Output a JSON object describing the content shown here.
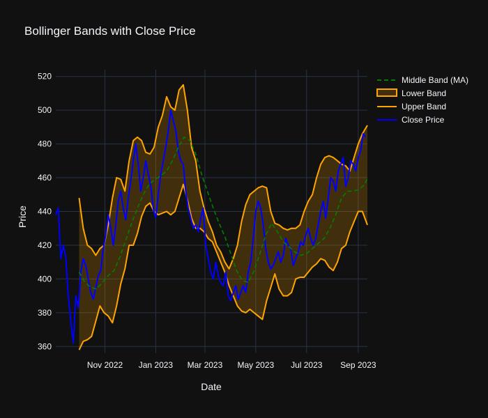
{
  "chart_data": {
    "type": "line",
    "title": "Bollinger Bands with Close Price",
    "xlabel": "Date",
    "ylabel": "Price",
    "xlim": [
      "2022-09-03",
      "2023-09-12"
    ],
    "ylim": [
      356,
      524
    ],
    "x_ticks": [
      "2022-11-01",
      "2023-01-01",
      "2023-03-01",
      "2023-05-01",
      "2023-07-01",
      "2023-09-01"
    ],
    "x_tick_labels": [
      "Nov 2022",
      "Jan 2023",
      "Mar 2023",
      "May 2023",
      "Jul 2023",
      "Sep 2023"
    ],
    "y_ticks": [
      360,
      380,
      400,
      420,
      440,
      460,
      480,
      500,
      520
    ],
    "grid": true,
    "legend_position": "right",
    "colors": {
      "background": "#111111",
      "grid": "#283442",
      "close": "#0000ff",
      "bands": "#ffa500",
      "fill": "rgba(255,165,0,0.2)",
      "middle": "#008000",
      "text": "#f2f5fa"
    },
    "series": [
      {
        "name": "Middle Band (MA)",
        "dash": true,
        "x": [
          "2022-10-01",
          "2022-10-08",
          "2022-10-15",
          "2022-10-22",
          "2022-10-29",
          "2022-11-05",
          "2022-11-12",
          "2022-11-19",
          "2022-11-26",
          "2022-12-03",
          "2022-12-10",
          "2022-12-17",
          "2022-12-24",
          "2022-12-31",
          "2023-01-07",
          "2023-01-14",
          "2023-01-21",
          "2023-01-28",
          "2023-02-04",
          "2023-02-11",
          "2023-02-18",
          "2023-02-25",
          "2023-03-04",
          "2023-03-11",
          "2023-03-18",
          "2023-03-25",
          "2023-04-01",
          "2023-04-08",
          "2023-04-15",
          "2023-04-22",
          "2023-04-29",
          "2023-05-06",
          "2023-05-13",
          "2023-05-20",
          "2023-05-27",
          "2023-06-03",
          "2023-06-10",
          "2023-06-17",
          "2023-06-24",
          "2023-07-01",
          "2023-07-08",
          "2023-07-15",
          "2023-07-22",
          "2023-07-29",
          "2023-08-05",
          "2023-08-12",
          "2023-08-19",
          "2023-08-26",
          "2023-09-02",
          "2023-09-09",
          "2023-09-12"
        ],
        "values": [
          404,
          398,
          395,
          394,
          398,
          402,
          405,
          413,
          423,
          433,
          442,
          450,
          456,
          459,
          461,
          464,
          470,
          478,
          484,
          482,
          474,
          462,
          452,
          442,
          433,
          425,
          415,
          405,
          399,
          398,
          405,
          415,
          426,
          433,
          428,
          422,
          419,
          416,
          414,
          415,
          418,
          421,
          424,
          430,
          438,
          448,
          452,
          452,
          453,
          456,
          460
        ]
      },
      {
        "name": "Lower Band",
        "x": [
          "2022-10-01",
          "2022-10-06",
          "2022-10-11",
          "2022-10-16",
          "2022-10-21",
          "2022-10-26",
          "2022-10-31",
          "2022-11-05",
          "2022-11-10",
          "2022-11-15",
          "2022-11-20",
          "2022-11-25",
          "2022-11-30",
          "2022-12-05",
          "2022-12-10",
          "2022-12-15",
          "2022-12-20",
          "2022-12-25",
          "2022-12-30",
          "2023-01-04",
          "2023-01-09",
          "2023-01-14",
          "2023-01-19",
          "2023-01-24",
          "2023-01-29",
          "2023-02-03",
          "2023-02-08",
          "2023-02-13",
          "2023-02-18",
          "2023-02-23",
          "2023-02-28",
          "2023-03-05",
          "2023-03-10",
          "2023-03-15",
          "2023-03-20",
          "2023-03-25",
          "2023-03-30",
          "2023-04-04",
          "2023-04-09",
          "2023-04-14",
          "2023-04-19",
          "2023-04-24",
          "2023-04-29",
          "2023-05-04",
          "2023-05-09",
          "2023-05-14",
          "2023-05-19",
          "2023-05-24",
          "2023-05-29",
          "2023-06-03",
          "2023-06-08",
          "2023-06-13",
          "2023-06-18",
          "2023-06-23",
          "2023-06-28",
          "2023-07-03",
          "2023-07-08",
          "2023-07-13",
          "2023-07-18",
          "2023-07-23",
          "2023-07-28",
          "2023-08-02",
          "2023-08-07",
          "2023-08-12",
          "2023-08-17",
          "2023-08-22",
          "2023-08-27",
          "2023-09-01",
          "2023-09-06",
          "2023-09-12"
        ],
        "values": [
          358,
          363,
          364,
          366,
          375,
          384,
          380,
          378,
          374,
          384,
          397,
          406,
          420,
          420,
          427,
          437,
          443,
          445,
          440,
          438,
          439,
          440,
          438,
          440,
          448,
          456,
          447,
          436,
          430,
          430,
          428,
          424,
          422,
          416,
          410,
          404,
          396,
          390,
          384,
          381,
          380,
          382,
          380,
          378,
          376,
          387,
          395,
          403,
          394,
          390,
          390,
          392,
          400,
          401,
          401,
          404,
          407,
          409,
          412,
          411,
          407,
          405,
          410,
          418,
          420,
          428,
          434,
          440,
          440,
          432
        ]
      },
      {
        "name": "Upper Band",
        "x": [
          "2022-10-01",
          "2022-10-06",
          "2022-10-11",
          "2022-10-16",
          "2022-10-21",
          "2022-10-26",
          "2022-10-31",
          "2022-11-05",
          "2022-11-10",
          "2022-11-15",
          "2022-11-20",
          "2022-11-25",
          "2022-11-30",
          "2022-12-05",
          "2022-12-10",
          "2022-12-15",
          "2022-12-20",
          "2022-12-25",
          "2022-12-30",
          "2023-01-04",
          "2023-01-09",
          "2023-01-14",
          "2023-01-19",
          "2023-01-24",
          "2023-01-29",
          "2023-02-03",
          "2023-02-08",
          "2023-02-13",
          "2023-02-18",
          "2023-02-23",
          "2023-02-28",
          "2023-03-05",
          "2023-03-10",
          "2023-03-15",
          "2023-03-20",
          "2023-03-25",
          "2023-03-30",
          "2023-04-04",
          "2023-04-09",
          "2023-04-14",
          "2023-04-19",
          "2023-04-24",
          "2023-04-29",
          "2023-05-04",
          "2023-05-09",
          "2023-05-14",
          "2023-05-19",
          "2023-05-24",
          "2023-05-29",
          "2023-06-03",
          "2023-06-08",
          "2023-06-13",
          "2023-06-18",
          "2023-06-23",
          "2023-06-28",
          "2023-07-03",
          "2023-07-08",
          "2023-07-13",
          "2023-07-18",
          "2023-07-23",
          "2023-07-28",
          "2023-08-02",
          "2023-08-07",
          "2023-08-12",
          "2023-08-17",
          "2023-08-22",
          "2023-08-27",
          "2023-09-01",
          "2023-09-06",
          "2023-09-12"
        ],
        "values": [
          448,
          430,
          420,
          418,
          414,
          418,
          420,
          432,
          448,
          460,
          459,
          452,
          470,
          482,
          484,
          482,
          475,
          474,
          478,
          490,
          497,
          508,
          502,
          500,
          512,
          515,
          500,
          478,
          470,
          452,
          442,
          434,
          428,
          420,
          416,
          410,
          406,
          412,
          420,
          434,
          444,
          450,
          452,
          454,
          455,
          454,
          440,
          433,
          432,
          430,
          429,
          430,
          430,
          432,
          440,
          446,
          450,
          460,
          468,
          472,
          473,
          472,
          470,
          468,
          467,
          464,
          472,
          480,
          486,
          491
        ]
      },
      {
        "name": "Close Price",
        "x": [
          "2022-09-03",
          "2022-09-06",
          "2022-09-09",
          "2022-09-12",
          "2022-09-15",
          "2022-09-18",
          "2022-09-21",
          "2022-09-24",
          "2022-09-27",
          "2022-09-30",
          "2022-10-03",
          "2022-10-06",
          "2022-10-09",
          "2022-10-12",
          "2022-10-15",
          "2022-10-18",
          "2022-10-21",
          "2022-10-24",
          "2022-10-27",
          "2022-10-30",
          "2022-11-02",
          "2022-11-05",
          "2022-11-08",
          "2022-11-11",
          "2022-11-14",
          "2022-11-17",
          "2022-11-20",
          "2022-11-23",
          "2022-11-26",
          "2022-11-29",
          "2022-12-02",
          "2022-12-05",
          "2022-12-08",
          "2022-12-11",
          "2022-12-14",
          "2022-12-17",
          "2022-12-20",
          "2022-12-23",
          "2022-12-26",
          "2022-12-29",
          "2023-01-01",
          "2023-01-04",
          "2023-01-07",
          "2023-01-10",
          "2023-01-13",
          "2023-01-16",
          "2023-01-19",
          "2023-01-22",
          "2023-01-25",
          "2023-01-28",
          "2023-01-31",
          "2023-02-03",
          "2023-02-06",
          "2023-02-09",
          "2023-02-12",
          "2023-02-15",
          "2023-02-18",
          "2023-02-21",
          "2023-02-24",
          "2023-02-27",
          "2023-03-02",
          "2023-03-05",
          "2023-03-08",
          "2023-03-11",
          "2023-03-14",
          "2023-03-17",
          "2023-03-20",
          "2023-03-23",
          "2023-03-26",
          "2023-03-29",
          "2023-04-01",
          "2023-04-04",
          "2023-04-07",
          "2023-04-10",
          "2023-04-13",
          "2023-04-16",
          "2023-04-19",
          "2023-04-22",
          "2023-04-25",
          "2023-04-28",
          "2023-05-01",
          "2023-05-04",
          "2023-05-07",
          "2023-05-10",
          "2023-05-13",
          "2023-05-16",
          "2023-05-19",
          "2023-05-22",
          "2023-05-25",
          "2023-05-28",
          "2023-05-31",
          "2023-06-03",
          "2023-06-06",
          "2023-06-09",
          "2023-06-12",
          "2023-06-15",
          "2023-06-18",
          "2023-06-21",
          "2023-06-24",
          "2023-06-27",
          "2023-06-30",
          "2023-07-03",
          "2023-07-06",
          "2023-07-09",
          "2023-07-12",
          "2023-07-15",
          "2023-07-18",
          "2023-07-21",
          "2023-07-24",
          "2023-07-27",
          "2023-07-30",
          "2023-08-02",
          "2023-08-05",
          "2023-08-08",
          "2023-08-11",
          "2023-08-14",
          "2023-08-17",
          "2023-08-20",
          "2023-08-23",
          "2023-08-26",
          "2023-08-29",
          "2023-09-01",
          "2023-09-04",
          "2023-09-07",
          "2023-09-10"
        ],
        "values": [
          438,
          442,
          412,
          420,
          413,
          390,
          375,
          362,
          390,
          383,
          404,
          412,
          408,
          400,
          392,
          388,
          395,
          402,
          405,
          418,
          426,
          438,
          430,
          420,
          432,
          446,
          452,
          442,
          435,
          448,
          458,
          470,
          480,
          468,
          452,
          460,
          470,
          462,
          455,
          442,
          436,
          450,
          462,
          470,
          478,
          488,
          500,
          494,
          488,
          476,
          470,
          468,
          452,
          442,
          436,
          430,
          432,
          428,
          436,
          442,
          420,
          412,
          404,
          400,
          410,
          402,
          398,
          396,
          404,
          390,
          387,
          392,
          396,
          388,
          392,
          396,
          392,
          404,
          410,
          424,
          440,
          446,
          442,
          432,
          418,
          410,
          406,
          408,
          412,
          416,
          410,
          414,
          424,
          420,
          418,
          408,
          412,
          416,
          422,
          420,
          426,
          430,
          424,
          420,
          424,
          432,
          440,
          446,
          436,
          448,
          460,
          458,
          452,
          464,
          468,
          472,
          455,
          460,
          470,
          468,
          464,
          472,
          476,
          486,
          484
        ]
      }
    ]
  }
}
